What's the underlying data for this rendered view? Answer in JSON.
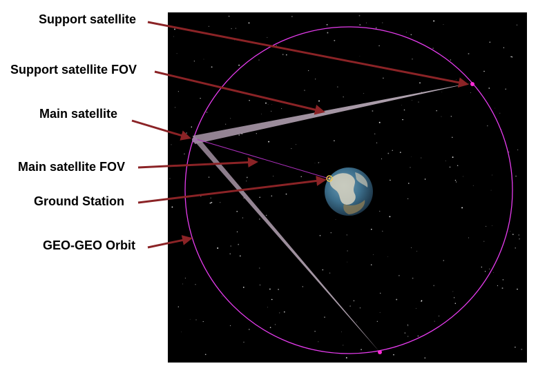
{
  "labels": {
    "support_satellite": "Support satellite",
    "support_satellite_fov": "Support satellite FOV",
    "main_satellite": "Main satellite",
    "main_satellite_fov": "Main satellite FOV",
    "ground_station": "Ground Station",
    "geo_geo_orbit": "GEO-GEO Orbit"
  },
  "colors": {
    "space_background": "#000000",
    "orbit": "#e83cf0",
    "satellite_marker": "#ff2bd6",
    "fov_beam": "#c9b8c8",
    "main_fov_line": "#b030c0",
    "arrow": "#8b2326",
    "earth_ocean": "#3b6d8a",
    "earth_land": "#d8d2c0",
    "ground_station_marker": "#f2c94c"
  }
}
